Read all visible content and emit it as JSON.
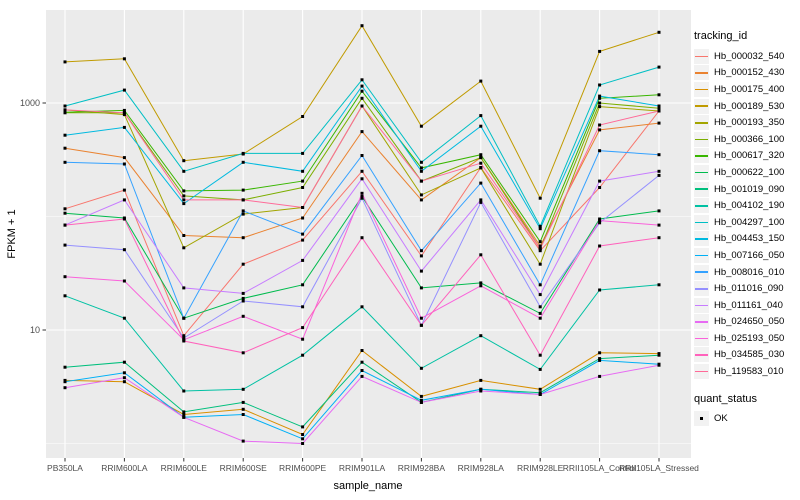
{
  "chart_data": {
    "type": "line",
    "title": "",
    "xlabel": "sample_name",
    "ylabel": "FPKM + 1",
    "y_scale": "log10",
    "y_axis_ticks": [
      "10",
      "1000"
    ],
    "y_tick_values": [
      10,
      1000
    ],
    "y_minor_gridline_values": [
      1,
      100
    ],
    "y_range": [
      0.75,
      6600
    ],
    "grid": "on",
    "legend_position": "right",
    "legend_title": "tracking_id",
    "quant_legend": {
      "title": "quant_status",
      "items": [
        {
          "label": "OK"
        }
      ]
    },
    "point_color": "#000000",
    "panel_bg": "#EBEBEB",
    "gridline_color": "#FFFFFF",
    "axis_text_color": "#4D4D4D",
    "categories": [
      "PB350LA",
      "RRIM600LA",
      "RRIM600LE",
      "RRIM600SE",
      "RRIM600PE",
      "RRIM901LA",
      "RRIM928BA",
      "RRIM928LA",
      "RRIM928LE",
      "RRII105LA_Control",
      "RRII105LA_Stressed"
    ],
    "series": [
      {
        "name": "Hb_000032_540",
        "color": "#F8766D",
        "values": [
          117,
          171,
          8.9,
          38,
          62,
          250,
          45,
          270,
          50,
          180,
          850
        ]
      },
      {
        "name": "Hb_000152_430",
        "color": "#EA8331",
        "values": [
          400,
          330,
          68,
          65,
          97,
          560,
          140,
          330,
          55,
          580,
          665
        ]
      },
      {
        "name": "Hb_000175_400",
        "color": "#D89000",
        "values": [
          3.6,
          3.5,
          1.8,
          2.0,
          1.2,
          6.6,
          2.6,
          3.6,
          3.0,
          6.3,
          6.2
        ]
      },
      {
        "name": "Hb_000189_530",
        "color": "#C09B00",
        "values": [
          2300,
          2450,
          310,
          355,
          760,
          4800,
          625,
          1560,
          145,
          2850,
          4200
        ]
      },
      {
        "name": "Hb_000193_350",
        "color": "#A3A500",
        "values": [
          870,
          790,
          53,
          105,
          120,
          940,
          155,
          268,
          38,
          930,
          850
        ]
      },
      {
        "name": "Hb_000366_100",
        "color": "#7CAE00",
        "values": [
          820,
          820,
          152,
          140,
          180,
          1100,
          205,
          330,
          52,
          1000,
          900
        ]
      },
      {
        "name": "Hb_000617_320",
        "color": "#39B600",
        "values": [
          830,
          860,
          168,
          171,
          205,
          1270,
          268,
          350,
          60,
          1100,
          1180
        ]
      },
      {
        "name": "Hb_000622_100",
        "color": "#00BB4E",
        "values": [
          107,
          97,
          12.7,
          19,
          25,
          150,
          23.5,
          26,
          14,
          95,
          112
        ]
      },
      {
        "name": "Hb_001019_090",
        "color": "#00BF7D",
        "values": [
          4.7,
          5.2,
          1.9,
          2.3,
          1.4,
          5.2,
          2.3,
          3.0,
          2.8,
          5.6,
          6.0
        ]
      },
      {
        "name": "Hb_004102_190",
        "color": "#00C1A3",
        "values": [
          20,
          12.7,
          2.9,
          3.0,
          6.0,
          16,
          4.6,
          8.9,
          4.5,
          22.5,
          25
        ]
      },
      {
        "name": "Hb_004297_100",
        "color": "#00BFC4",
        "values": [
          940,
          1300,
          250,
          360,
          360,
          1600,
          300,
          775,
          82,
          1440,
          2070
        ]
      },
      {
        "name": "Hb_004453_150",
        "color": "#00BAE0",
        "values": [
          520,
          610,
          130,
          300,
          250,
          1410,
          250,
          625,
          78,
          1150,
          940
        ]
      },
      {
        "name": "Hb_007166_050",
        "color": "#00B0F6",
        "values": [
          3.5,
          4.2,
          1.7,
          1.8,
          1.1,
          4.4,
          2.4,
          3.0,
          2.7,
          5.4,
          5.0
        ]
      },
      {
        "name": "Hb_008016_010",
        "color": "#35A2FF",
        "values": [
          300,
          290,
          12.7,
          112,
          70,
          345,
          50,
          197,
          25,
          380,
          350
        ]
      },
      {
        "name": "Hb_011016_090",
        "color": "#9590FF",
        "values": [
          56,
          51,
          8.5,
          18,
          16,
          145,
          11,
          133,
          16,
          88,
          230
        ]
      },
      {
        "name": "Hb_011161_040",
        "color": "#C77CFF",
        "values": [
          84,
          140,
          23.5,
          21,
          41,
          215,
          33,
          140,
          20.5,
          205,
          250
        ]
      },
      {
        "name": "Hb_024650_050",
        "color": "#E76BF3",
        "values": [
          3.1,
          3.8,
          1.7,
          1.05,
          1.0,
          3.9,
          2.3,
          2.9,
          2.7,
          3.9,
          4.9
        ]
      },
      {
        "name": "Hb_025193_050",
        "color": "#FA62DB",
        "values": [
          29.5,
          27,
          8.2,
          13.2,
          8.3,
          160,
          12.7,
          24.5,
          12.7,
          92,
          84
        ]
      },
      {
        "name": "Hb_034585_030",
        "color": "#FF62BC",
        "values": [
          84,
          95,
          8.0,
          6.3,
          10.5,
          65,
          11,
          46,
          6.0,
          55,
          65
        ]
      },
      {
        "name": "Hb_119583_010",
        "color": "#FF6A98",
        "values": [
          870,
          820,
          140,
          140,
          120,
          940,
          205,
          295,
          52,
          640,
          850
        ]
      }
    ]
  }
}
